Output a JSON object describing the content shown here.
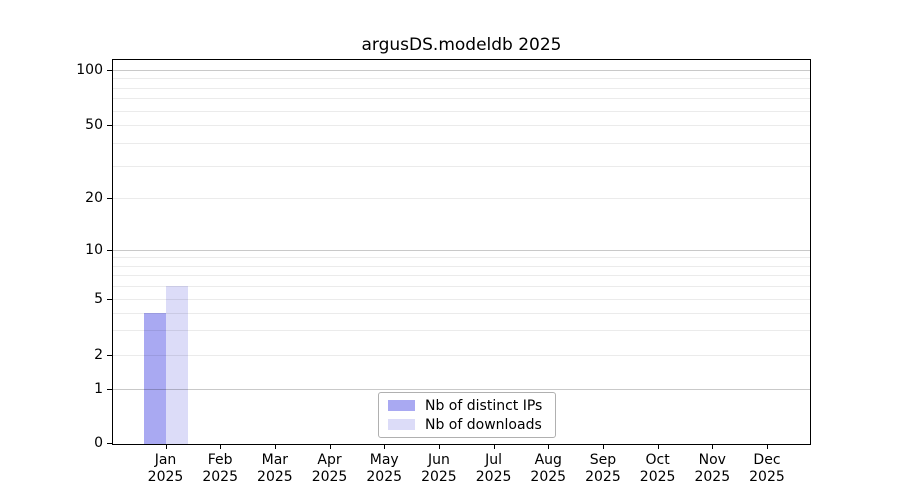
{
  "figure": {
    "title": "argusDS.modeldb 2025"
  },
  "chart_data": {
    "type": "bar",
    "title": "argusDS.modeldb 2025",
    "x_categories": [
      {
        "month": "Jan",
        "year": "2025"
      },
      {
        "month": "Feb",
        "year": "2025"
      },
      {
        "month": "Mar",
        "year": "2025"
      },
      {
        "month": "Apr",
        "year": "2025"
      },
      {
        "month": "May",
        "year": "2025"
      },
      {
        "month": "Jun",
        "year": "2025"
      },
      {
        "month": "Jul",
        "year": "2025"
      },
      {
        "month": "Aug",
        "year": "2025"
      },
      {
        "month": "Sep",
        "year": "2025"
      },
      {
        "month": "Oct",
        "year": "2025"
      },
      {
        "month": "Nov",
        "year": "2025"
      },
      {
        "month": "Dec",
        "year": "2025"
      }
    ],
    "series": [
      {
        "name": "Nb of distinct IPs",
        "color": "#a9a9f2",
        "values": [
          4,
          0,
          0,
          0,
          0,
          0,
          0,
          0,
          0,
          0,
          0,
          0
        ]
      },
      {
        "name": "Nb of downloads",
        "color": "#dcdcf8",
        "values": [
          6,
          0,
          0,
          0,
          0,
          0,
          0,
          0,
          0,
          0,
          0,
          0
        ]
      }
    ],
    "yaxis": {
      "scale": "log-like",
      "range": [
        0,
        100
      ],
      "labeled_ticks": [
        100,
        50,
        20,
        10,
        5,
        2,
        1,
        0
      ],
      "major_gridlines": [
        100,
        10,
        1
      ],
      "minor_gridlines": [
        90,
        80,
        70,
        60,
        40,
        30,
        9,
        8,
        7,
        6,
        4,
        3
      ]
    },
    "legend_position": "lower center",
    "grid": true
  },
  "colors": {
    "bar_distinct_ips": "#a9a9f2",
    "bar_downloads": "#dcdcf8",
    "grid_minor": "rgba(0,0,0,0.08)",
    "grid_major": "rgba(0,0,0,0.21)",
    "spine": "#000000",
    "legend_border": "#b0b0b0"
  }
}
